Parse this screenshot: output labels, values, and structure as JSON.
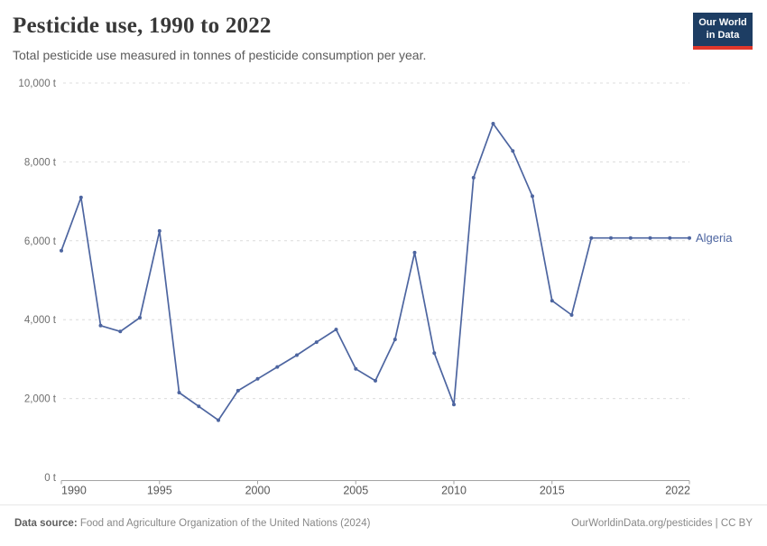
{
  "header": {
    "title": "Pesticide use, 1990 to 2022",
    "subtitle": "Total pesticide use measured in tonnes of pesticide consumption per year.",
    "logo": {
      "line1": "Our World",
      "line2": "in Data"
    }
  },
  "chart_data": {
    "type": "line",
    "title": "Pesticide use, 1990 to 2022",
    "ylabel": "",
    "xlabel": "",
    "unit": "t",
    "ylim": [
      0,
      10000
    ],
    "xlim": [
      1990,
      2022
    ],
    "grid": "horizontal-dashed",
    "legend_position": "end-of-line",
    "x": [
      1990,
      1991,
      1992,
      1993,
      1994,
      1995,
      1996,
      1997,
      1998,
      1999,
      2000,
      2001,
      2002,
      2003,
      2004,
      2005,
      2006,
      2007,
      2008,
      2009,
      2010,
      2011,
      2012,
      2013,
      2014,
      2015,
      2016,
      2017,
      2018,
      2019,
      2020,
      2021,
      2022
    ],
    "series": [
      {
        "name": "Algeria",
        "color": "#4d65a0",
        "values": [
          5750,
          7100,
          3850,
          3700,
          4050,
          6250,
          2150,
          1800,
          1450,
          2200,
          2500,
          2800,
          3100,
          3430,
          3750,
          2750,
          2450,
          3500,
          5700,
          3150,
          1850,
          7600,
          8970,
          8280,
          7130,
          4480,
          4120,
          6070,
          6070,
          6070,
          6070,
          6070,
          6070
        ]
      }
    ],
    "yticks": [
      {
        "value": 0,
        "label": "0 t"
      },
      {
        "value": 2000,
        "label": "2,000 t"
      },
      {
        "value": 4000,
        "label": "4,000 t"
      },
      {
        "value": 6000,
        "label": "6,000 t"
      },
      {
        "value": 8000,
        "label": "8,000 t"
      },
      {
        "value": 10000,
        "label": "10,000 t"
      }
    ],
    "xticks": [
      {
        "value": 1990,
        "label": "1990"
      },
      {
        "value": 1995,
        "label": "1995"
      },
      {
        "value": 2000,
        "label": "2000"
      },
      {
        "value": 2005,
        "label": "2005"
      },
      {
        "value": 2010,
        "label": "2010"
      },
      {
        "value": 2015,
        "label": "2015"
      },
      {
        "value": 2022,
        "label": "2022"
      }
    ]
  },
  "colors": {
    "line": "#4d65a0",
    "gridline": "#dcdcdc",
    "axis": "#a3a3a3",
    "ytick_text": "#6e6e6e",
    "xtick_text": "#565656",
    "logo_bg": "#1d3d63",
    "logo_accent": "#e0372b"
  },
  "footer": {
    "source_label": "Data source:",
    "source_text": " Food and Agriculture Organization of the United Nations (2024)",
    "rights": "OurWorldinData.org/pesticides | CC BY"
  }
}
